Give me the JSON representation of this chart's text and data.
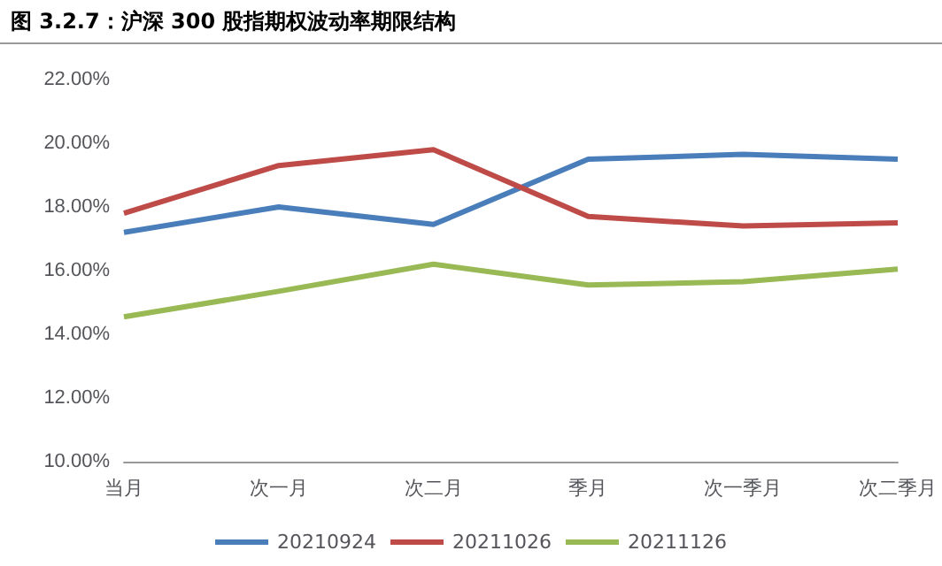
{
  "chart_data": {
    "type": "line",
    "title": "图 3.2.7：沪深 300 股指期权波动率期限结构",
    "categories": [
      "当月",
      "次一月",
      "次二月",
      "季月",
      "次一季月",
      "次二季月"
    ],
    "series": [
      {
        "name": "20210924",
        "color": "#4a7ebb",
        "values": [
          17.2,
          18.0,
          17.45,
          19.5,
          19.65,
          19.5
        ]
      },
      {
        "name": "20211026",
        "color": "#be4b48",
        "values": [
          17.8,
          19.3,
          19.8,
          17.7,
          17.4,
          17.5
        ]
      },
      {
        "name": "20211126",
        "color": "#98b954",
        "values": [
          14.55,
          15.35,
          16.2,
          15.55,
          15.65,
          16.05
        ]
      }
    ],
    "ylim": [
      10,
      22
    ],
    "yticks": [
      {
        "value": 10,
        "label": "10.00%"
      },
      {
        "value": 12,
        "label": "12.00%"
      },
      {
        "value": 14,
        "label": "14.00%"
      },
      {
        "value": 16,
        "label": "16.00%"
      },
      {
        "value": 18,
        "label": "18.00%"
      },
      {
        "value": 20,
        "label": "20.00%"
      },
      {
        "value": 22,
        "label": "22.00%"
      }
    ],
    "legend": "bottom",
    "marker": "none",
    "line_style": "solid"
  }
}
